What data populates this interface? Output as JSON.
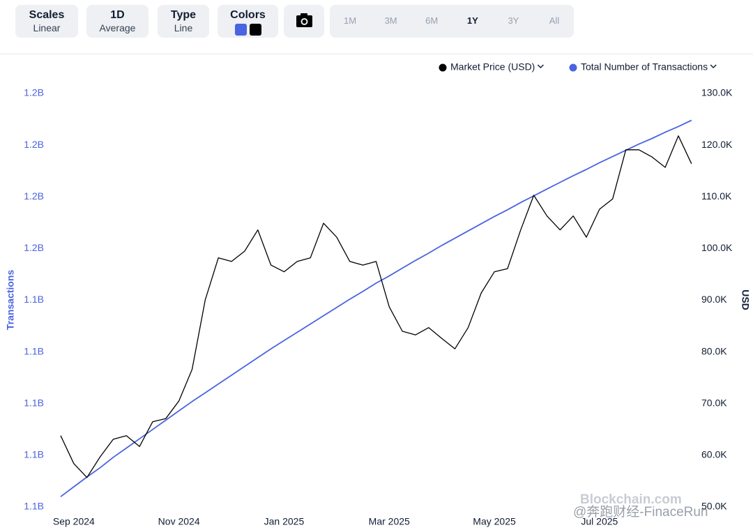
{
  "toolbar": {
    "buttons": [
      {
        "title": "Scales",
        "subtitle": "Linear"
      },
      {
        "title": "1D",
        "subtitle": "Average"
      },
      {
        "title": "Type",
        "subtitle": "Line"
      },
      {
        "title": "Colors"
      }
    ],
    "ranges": [
      "1M",
      "3M",
      "6M",
      "1Y",
      "3Y",
      "All"
    ],
    "active_range": 3
  },
  "watermark": [
    "Blockchain.com",
    "@奔跑财经-FinaceRun"
  ],
  "chart_data": {
    "type": "line",
    "ylabel": "Transactions",
    "y2label": "USD",
    "categories": [
      null,
      "Sep 2024",
      null,
      null,
      null,
      null,
      null,
      null,
      null,
      "Nov 2024",
      null,
      null,
      null,
      null,
      null,
      null,
      null,
      "Jan 2025",
      null,
      null,
      null,
      null,
      null,
      null,
      null,
      "Mar 2025",
      null,
      null,
      null,
      null,
      null,
      null,
      null,
      "May 2025",
      null,
      null,
      null,
      null,
      null,
      null,
      null,
      "Jul 2025",
      null,
      null,
      null,
      null,
      null,
      null,
      null
    ],
    "series": [
      {
        "name": "Market Price (USD)",
        "color": "#000000",
        "axis": "y2",
        "values": [
          63800,
          58400,
          55700,
          59700,
          63100,
          63800,
          61700,
          66500,
          67100,
          70500,
          76600,
          90100,
          98200,
          97500,
          99500,
          103600,
          96800,
          95500,
          97500,
          98200,
          104900,
          102200,
          97500,
          96800,
          97500,
          88700,
          84000,
          83300,
          84700,
          82600,
          80600,
          84700,
          91400,
          95500,
          96100,
          103600,
          110300,
          106300,
          103600,
          106300,
          102200,
          107600,
          109600,
          119100,
          119100,
          117700,
          115700,
          121800,
          116400
        ]
      },
      {
        "name": "Total Number of Transactions",
        "color": "#4a63e0",
        "axis": "y",
        "values": [
          1102000000,
          1103900000,
          1105800000,
          1107600000,
          1109600000,
          1111400000,
          1113200000,
          1115000000,
          1116800000,
          1118600000,
          1120400000,
          1122100000,
          1123800000,
          1125500000,
          1127200000,
          1128900000,
          1130600000,
          1132200000,
          1133800000,
          1135400000,
          1137000000,
          1138600000,
          1140200000,
          1141700000,
          1143300000,
          1144700000,
          1146200000,
          1147700000,
          1149100000,
          1150600000,
          1152000000,
          1153400000,
          1154800000,
          1156200000,
          1157500000,
          1158900000,
          1160200000,
          1161500000,
          1162800000,
          1164100000,
          1165300000,
          1166600000,
          1167800000,
          1169000000,
          1170200000,
          1171300000,
          1172500000,
          1173600000,
          1174800000
        ]
      }
    ],
    "ylim": [
      1100000000,
      1180000000
    ],
    "yticks": [
      {
        "value": 1100000000,
        "label": "1.1B"
      },
      {
        "value": 1110000000,
        "label": "1.1B"
      },
      {
        "value": 1120000000,
        "label": "1.1B"
      },
      {
        "value": 1130000000,
        "label": "1.1B"
      },
      {
        "value": 1140000000,
        "label": "1.1B"
      },
      {
        "value": 1150000000,
        "label": "1.2B"
      },
      {
        "value": 1160000000,
        "label": "1.2B"
      },
      {
        "value": 1170000000,
        "label": "1.2B"
      },
      {
        "value": 1180000000,
        "label": "1.2B"
      }
    ],
    "y2lim": [
      50000,
      130000
    ],
    "y2ticks": [
      {
        "value": 50000,
        "label": "50.0K"
      },
      {
        "value": 60000,
        "label": "60.0K"
      },
      {
        "value": 70000,
        "label": "70.0K"
      },
      {
        "value": 80000,
        "label": "80.0K"
      },
      {
        "value": 90000,
        "label": "90.0K"
      },
      {
        "value": 100000,
        "label": "100.0K"
      },
      {
        "value": 110000,
        "label": "110.0K"
      },
      {
        "value": 120000,
        "label": "120.0K"
      },
      {
        "value": 130000,
        "label": "130.0K"
      }
    ],
    "grid": false,
    "legend": "top-right"
  }
}
